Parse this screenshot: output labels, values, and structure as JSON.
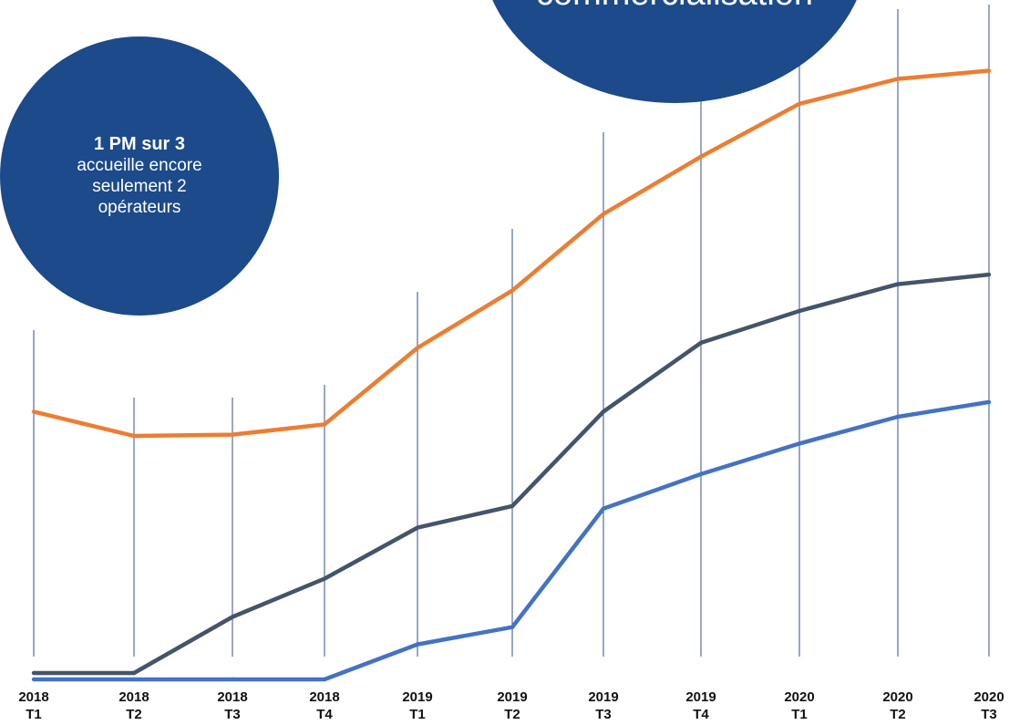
{
  "colors": {
    "bubble": "#1c4a8a",
    "grid": "#2f4f9a"
  },
  "bubbles": {
    "left": {
      "strong": "1 PM sur 3",
      "lines": [
        "accueille encore",
        "seulement 2",
        "opérateurs"
      ]
    },
    "top": {
      "text": "commercialisation"
    }
  },
  "chart_data": {
    "type": "line",
    "categories": [
      {
        "year": "2018",
        "quarter": "T1"
      },
      {
        "year": "2018",
        "quarter": "T2"
      },
      {
        "year": "2018",
        "quarter": "T3"
      },
      {
        "year": "2018",
        "quarter": "T4"
      },
      {
        "year": "2019",
        "quarter": "T1"
      },
      {
        "year": "2019",
        "quarter": "T2"
      },
      {
        "year": "2019",
        "quarter": "T3"
      },
      {
        "year": "2019",
        "quarter": "T4"
      },
      {
        "year": "2020",
        "quarter": "T1"
      },
      {
        "year": "2020",
        "quarter": "T2"
      },
      {
        "year": "2020",
        "quarter": "T3"
      }
    ],
    "ylim": [
      0,
      100
    ],
    "grid_vertical": true,
    "series": [
      {
        "color": "#ed7d31",
        "values": [
          42.0,
          38.2,
          38.4,
          40.0,
          52.0,
          61.0,
          73.0,
          82.0,
          90.3,
          94.2,
          95.5
        ]
      },
      {
        "color": "#44546a",
        "values": [
          1.0,
          1.0,
          9.8,
          15.8,
          23.8,
          27.2,
          42.0,
          52.8,
          57.8,
          62.0,
          63.5
        ]
      },
      {
        "color": "#4472c4",
        "values": [
          0.0,
          0.0,
          0.0,
          0.0,
          5.5,
          8.2,
          26.8,
          32.2,
          37.0,
          41.2,
          43.5
        ]
      }
    ]
  }
}
